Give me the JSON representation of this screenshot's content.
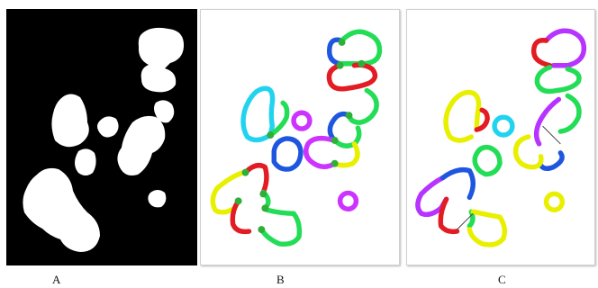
{
  "captions": {
    "a": "A",
    "b": "B",
    "c": "C"
  },
  "colors": {
    "green": "#22dd55",
    "blue": "#1f56e0",
    "red": "#e31b23",
    "cyan": "#22d3f0",
    "magenta": "#cc33ff",
    "yellow": "#e8f000",
    "purple": "#b733ff",
    "joint_green": "#2fae3a",
    "link": "#444444"
  }
}
